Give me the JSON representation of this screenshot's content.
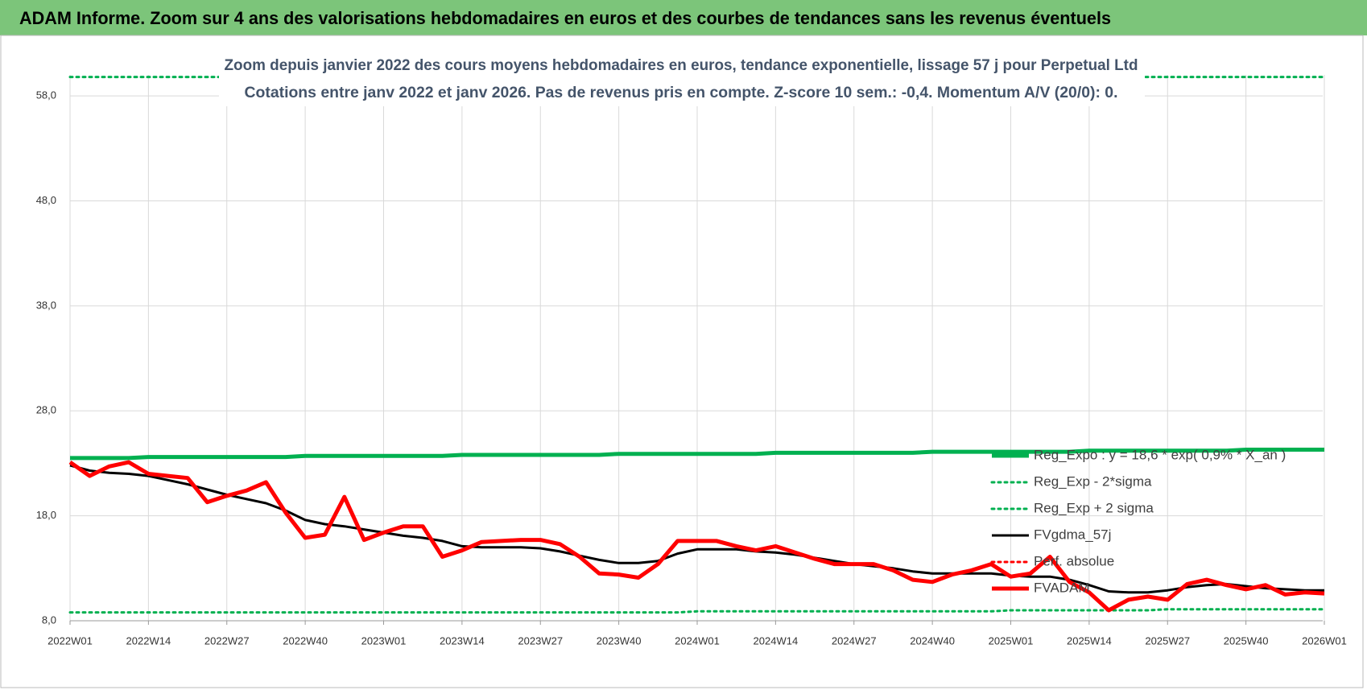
{
  "page_title": "ADAM Informe. Zoom sur 4 ans des valorisations hebdomadaires en euros et des courbes de tendances sans les revenus éventuels",
  "chart_data": {
    "type": "line",
    "title": "Zoom depuis janvier 2022 des cours moyens hebdomadaires en euros, tendance exponentielle, lissage 57 j pour Perpetual Ltd",
    "subtitle": "Cotations entre janv 2022 et janv 2026. Pas de revenus pris en compte. Z-score 10 sem.: -0,4. Momentum A/V (20/0): 0.",
    "categories": [
      "2022W01",
      null,
      null,
      null,
      "2022W14",
      null,
      null,
      null,
      "2022W27",
      null,
      null,
      null,
      "2022W40",
      null,
      null,
      null,
      "2023W01",
      null,
      null,
      null,
      "2023W14",
      null,
      null,
      null,
      "2023W27",
      null,
      null,
      null,
      "2023W40",
      null,
      null,
      null,
      "2024W01",
      null,
      null,
      null,
      "2024W14",
      null,
      null,
      null,
      "2024W27",
      null,
      null,
      null,
      "2024W40",
      null,
      null,
      null,
      "2025W01",
      null,
      null,
      null,
      "2025W14",
      null,
      null,
      null,
      "2025W27",
      null,
      null,
      null,
      "2025W40",
      null,
      null,
      null,
      "2026W01"
    ],
    "ylim": [
      8,
      60
    ],
    "yticks": [
      {
        "value": 8,
        "label": "8,0"
      },
      {
        "value": 18,
        "label": "18,0"
      },
      {
        "value": 28,
        "label": "28,0"
      },
      {
        "value": 38,
        "label": "38,0"
      },
      {
        "value": 48,
        "label": "48,0"
      },
      {
        "value": 58,
        "label": "58,0"
      }
    ],
    "grid": true,
    "series": [
      {
        "name": "Reg_Expo : y = 18,6 * exp( 0,9% * X_an )",
        "color": "#00b050",
        "style": "solid",
        "width": 5,
        "values": [
          23.5,
          23.5,
          23.5,
          23.5,
          23.6,
          23.6,
          23.6,
          23.6,
          23.6,
          23.6,
          23.6,
          23.6,
          23.7,
          23.7,
          23.7,
          23.7,
          23.7,
          23.7,
          23.7,
          23.7,
          23.8,
          23.8,
          23.8,
          23.8,
          23.8,
          23.8,
          23.8,
          23.8,
          23.9,
          23.9,
          23.9,
          23.9,
          23.9,
          23.9,
          23.9,
          23.9,
          24.0,
          24.0,
          24.0,
          24.0,
          24.0,
          24.0,
          24.0,
          24.0,
          24.1,
          24.1,
          24.1,
          24.1,
          24.1,
          24.1,
          24.1,
          24.1,
          24.2,
          24.2,
          24.2,
          24.2,
          24.2,
          24.2,
          24.2,
          24.2,
          24.3,
          24.3,
          24.3,
          24.3,
          24.3
        ]
      },
      {
        "name": "Reg_Exp - 2*sigma",
        "color": "#00b050",
        "style": "dotted",
        "width": 3,
        "values": [
          8.8,
          8.8,
          8.8,
          8.8,
          8.8,
          8.8,
          8.8,
          8.8,
          8.8,
          8.8,
          8.8,
          8.8,
          8.8,
          8.8,
          8.8,
          8.8,
          8.8,
          8.8,
          8.8,
          8.8,
          8.8,
          8.8,
          8.8,
          8.8,
          8.8,
          8.8,
          8.8,
          8.8,
          8.8,
          8.8,
          8.8,
          8.8,
          8.9,
          8.9,
          8.9,
          8.9,
          8.9,
          8.9,
          8.9,
          8.9,
          8.9,
          8.9,
          8.9,
          8.9,
          8.9,
          8.9,
          8.9,
          8.9,
          9.0,
          9.0,
          9.0,
          9.0,
          9.0,
          9.0,
          9.0,
          9.0,
          9.1,
          9.1,
          9.1,
          9.1,
          9.1,
          9.1,
          9.1,
          9.1,
          9.1
        ]
      },
      {
        "name": "Reg_Exp + 2 sigma",
        "color": "#00b050",
        "style": "dotted",
        "width": 3,
        "values": [
          59.8,
          59.8,
          59.8,
          59.8,
          59.8,
          59.8,
          59.8,
          59.8,
          59.8,
          59.8,
          59.8,
          59.8,
          59.8,
          59.8,
          59.8,
          59.8,
          59.8,
          59.8,
          59.8,
          59.8,
          59.8,
          59.8,
          59.8,
          59.8,
          59.8,
          59.8,
          59.8,
          59.8,
          59.8,
          59.8,
          59.8,
          59.8,
          59.8,
          59.8,
          59.8,
          59.8,
          59.8,
          59.8,
          59.8,
          59.8,
          59.8,
          59.8,
          59.8,
          59.8,
          59.8,
          59.8,
          59.8,
          59.8,
          59.8,
          59.8,
          59.8,
          59.8,
          59.8,
          59.8,
          59.8,
          59.8,
          59.8,
          59.8,
          59.8,
          59.8,
          59.8,
          59.8,
          59.8,
          59.8,
          59.8
        ]
      },
      {
        "name": "FVgdma_57j",
        "color": "#000000",
        "style": "solid",
        "width": 3,
        "values": [
          22.8,
          22.3,
          22.1,
          22.0,
          21.8,
          21.4,
          21.0,
          20.5,
          20.0,
          19.6,
          19.2,
          18.5,
          17.6,
          17.2,
          17.0,
          16.7,
          16.4,
          16.1,
          15.9,
          15.6,
          15.1,
          15.0,
          15.0,
          15.0,
          14.9,
          14.6,
          14.2,
          13.8,
          13.5,
          13.5,
          13.7,
          14.4,
          14.8,
          14.8,
          14.8,
          14.6,
          14.5,
          14.3,
          14.0,
          13.7,
          13.4,
          13.2,
          13.0,
          12.7,
          12.5,
          12.5,
          12.5,
          12.5,
          12.3,
          12.2,
          12.2,
          11.9,
          11.4,
          10.8,
          10.7,
          10.7,
          10.9,
          11.2,
          11.4,
          11.5,
          11.3,
          11.1,
          11.0,
          10.9,
          10.9
        ]
      },
      {
        "name": "Perf. absolue",
        "color": "#ff0000",
        "style": "dotted",
        "width": 3,
        "values": [
          null,
          null,
          null,
          null,
          null,
          null,
          null,
          null,
          null,
          null,
          null,
          null,
          null,
          null,
          null,
          null,
          null,
          null,
          null,
          null,
          null,
          null,
          null,
          null,
          null,
          null,
          null,
          null,
          null,
          null,
          null,
          null,
          null,
          null,
          null,
          null,
          null,
          null,
          null,
          null,
          null,
          null,
          null,
          null,
          null,
          null,
          null,
          null,
          null,
          null,
          null,
          null,
          null,
          null,
          null,
          null,
          null,
          null,
          null,
          null,
          null,
          null,
          null,
          null,
          null
        ]
      },
      {
        "name": "FVADAM",
        "color": "#ff0000",
        "style": "solid",
        "width": 5,
        "values": [
          23.1,
          21.8,
          22.7,
          23.1,
          22.0,
          21.8,
          21.6,
          19.3,
          19.9,
          20.4,
          21.2,
          18.3,
          15.9,
          16.2,
          19.8,
          15.7,
          16.4,
          17.0,
          17.0,
          14.1,
          14.7,
          15.5,
          15.6,
          15.7,
          15.7,
          15.3,
          14.1,
          12.5,
          12.4,
          12.1,
          13.4,
          15.6,
          15.6,
          15.6,
          15.1,
          14.7,
          15.1,
          14.5,
          13.9,
          13.4,
          13.4,
          13.4,
          12.8,
          11.9,
          11.7,
          12.4,
          12.8,
          13.4,
          12.2,
          12.5,
          14.1,
          11.7,
          10.7,
          9.0,
          10.0,
          10.3,
          10.0,
          11.5,
          11.9,
          11.4,
          11.0,
          11.4,
          10.5,
          10.7,
          10.6
        ]
      }
    ]
  }
}
